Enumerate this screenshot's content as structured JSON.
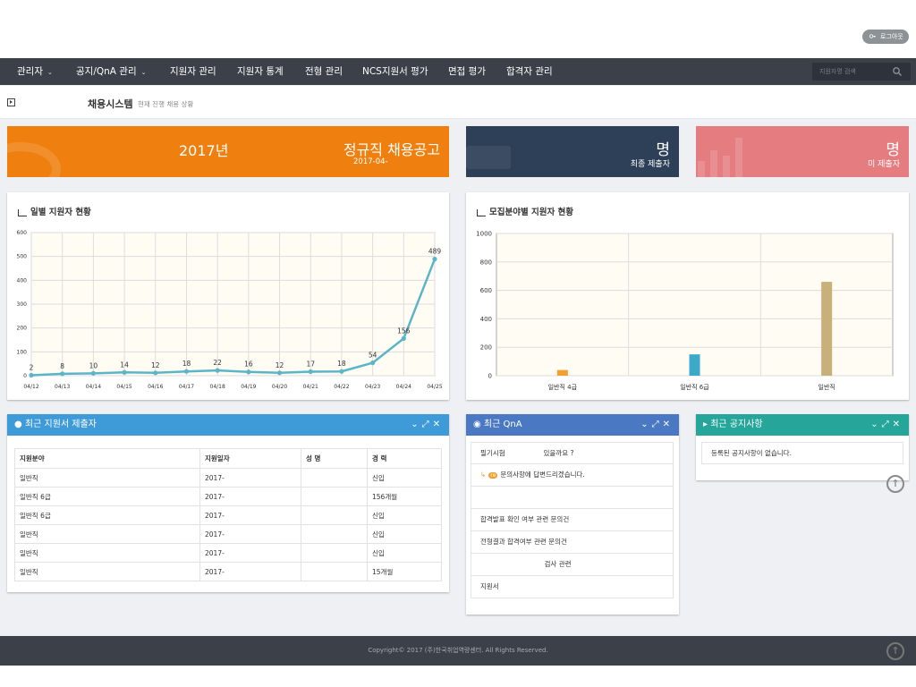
{
  "login_label": "로그아웃",
  "nav": [
    {
      "label": "관리자",
      "caret": "⌄"
    },
    {
      "label": "공지/QnA 관리",
      "caret": "⌄"
    },
    {
      "label": "지원자 관리"
    },
    {
      "label": "지원자 통계"
    },
    {
      "label": "전형 관리"
    },
    {
      "label": "NCS지원서 평가"
    },
    {
      "label": "면접 평가"
    },
    {
      "label": "합격자 관리"
    }
  ],
  "search": {
    "placeholder": "지원자명 검색"
  },
  "subheader": {
    "title": "채용시스템",
    "desc": "현재 진행 채용 상황"
  },
  "banner": {
    "year": "2017년",
    "title": "정규직 채용공고",
    "date": "2017-04-"
  },
  "stat_final": {
    "count": "명",
    "label": "최종 제출자"
  },
  "stat_pending": {
    "count": "명",
    "label": "미 제출자"
  },
  "daily_chart": {
    "title": "일별 지원자 현황",
    "chart_data": {
      "type": "line",
      "x": [
        "04/12",
        "04/13",
        "04/14",
        "04/15",
        "04/16",
        "04/17",
        "04/18",
        "04/19",
        "04/20",
        "04/21",
        "04/22",
        "04/23",
        "04/24",
        "04/25"
      ],
      "y": [
        2,
        8,
        10,
        14,
        12,
        18,
        22,
        16,
        12,
        17,
        18,
        54,
        156,
        489
      ],
      "ylim": [
        0,
        600
      ],
      "yticks": [
        "0",
        "100",
        "200",
        "300",
        "400",
        "500",
        "600"
      ],
      "grid": true,
      "color": "#5bb5c8"
    }
  },
  "field_chart": {
    "title": "모집분야별 지원자 현황",
    "chart_data": {
      "type": "bar",
      "categories": [
        "일반직 4급",
        "일반직 6급",
        "일반직"
      ],
      "values": [
        40,
        150,
        660
      ],
      "ylim": [
        0,
        1000
      ],
      "yticks": [
        "0",
        "200",
        "400",
        "600",
        "800",
        "1000"
      ],
      "colors": [
        "#f0a030",
        "#3aaac8",
        "#c9b07a"
      ],
      "grid": true
    }
  },
  "applicants": {
    "title": "최근 지원서 제출자",
    "header_color": "#3f9ad8",
    "columns": [
      "지원분야",
      "지원일자",
      "성 명",
      "경 력"
    ],
    "rows": [
      [
        "일반직",
        "2017-",
        "",
        "신입"
      ],
      [
        "일반직 6급",
        "2017-",
        "",
        "156개월"
      ],
      [
        "일반직 6급",
        "2017-",
        "",
        "신입"
      ],
      [
        "일반직",
        "2017-",
        "",
        "신입"
      ],
      [
        "일반직",
        "2017-",
        "",
        "신입"
      ],
      [
        "일반직",
        "2017-",
        "",
        "15개월"
      ]
    ]
  },
  "qna": {
    "title": "최근 QnA",
    "header_color": "#4b78c2",
    "items": [
      "필기시험                  있을까요 ?",
      "문의사항에 답변드리겠습니다.",
      "",
      "합격발표 확인 여부 관련 문의건",
      "전형결과 합격여부 관련 문의건",
      "                              검사 관련",
      "지원서"
    ],
    "re_badge": "re"
  },
  "notice": {
    "title": "최근 공지사항",
    "header_color": "#26a69a",
    "empty": "등록된 공지사항이 없습니다."
  },
  "footer": {
    "copyright": "Copyright© 2017 (주)한국취업역량센터. All Rights Reserved."
  }
}
